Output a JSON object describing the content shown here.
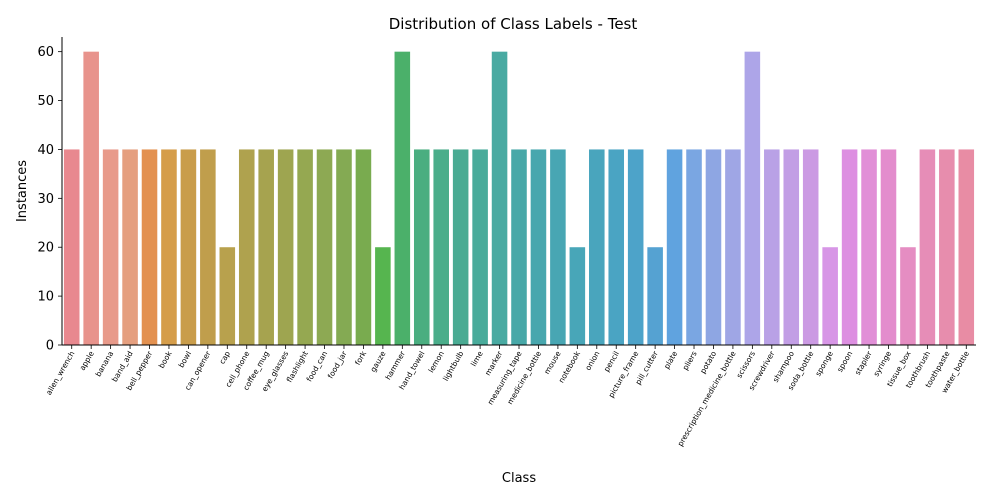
{
  "chart_data": {
    "type": "bar",
    "title": "Distribution of Class Labels - Test",
    "xlabel": "Class",
    "ylabel": "Instances",
    "ylim": [
      0,
      63
    ],
    "yticks": [
      0,
      10,
      20,
      30,
      40,
      50,
      60
    ],
    "grid": false,
    "categories": [
      "allen_wrench",
      "apple",
      "banana",
      "band_aid",
      "bell_pepper",
      "book",
      "bowl",
      "can_opener",
      "cap",
      "cell_phone",
      "coffee_mug",
      "eye_glasses",
      "flashlight",
      "food_can",
      "food_jar",
      "fork",
      "gauze",
      "hammer",
      "hand_towel",
      "lemon",
      "lightbulb",
      "lime",
      "marker",
      "measuring_tape",
      "medicine_bottle",
      "mouse",
      "notebook",
      "onion",
      "pencil",
      "picture_frame",
      "pill_cutter",
      "plate",
      "pliers",
      "potato",
      "prescription_medicine_bottle",
      "scissors",
      "screwdriver",
      "shampoo",
      "soda_bottle",
      "sponge",
      "spoon",
      "stapler",
      "syringe",
      "tissue_box",
      "toothbrush",
      "toothpaste",
      "water_bottle"
    ],
    "values": [
      40,
      60,
      40,
      40,
      40,
      40,
      40,
      40,
      20,
      40,
      40,
      40,
      40,
      40,
      40,
      40,
      20,
      60,
      40,
      40,
      40,
      40,
      60,
      40,
      40,
      40,
      20,
      40,
      40,
      40,
      20,
      40,
      40,
      40,
      40,
      60,
      40,
      40,
      40,
      20,
      40,
      40,
      40,
      20,
      40,
      40,
      40
    ],
    "colors": [
      "#e8888f",
      "#e8938c",
      "#e89a8a",
      "#e59f7f",
      "#e39150",
      "#d59d4a",
      "#c99d4b",
      "#c09e4c",
      "#b8a14d",
      "#afa24e",
      "#a6a34f",
      "#9ea550",
      "#95a851",
      "#8da953",
      "#84aa53",
      "#79ab4f",
      "#56b54f",
      "#4bb06a",
      "#4aae80",
      "#4aad8a",
      "#4aab93",
      "#49ab9b",
      "#49aaa2",
      "#48a8a8",
      "#48a7ae",
      "#48a6b3",
      "#48a6b8",
      "#49a5bd",
      "#4aa4c3",
      "#4da3c9",
      "#55a2d2",
      "#60a3df",
      "#7aa6e2",
      "#8ea6e3",
      "#9fa6e5",
      "#ada5e8",
      "#b9a1e6",
      "#c29ee5",
      "#cb9ae3",
      "#d796e6",
      "#dd8fe1",
      "#e18fd7",
      "#e38dcd",
      "#e58dc2",
      "#e68db7",
      "#e78dad",
      "#e88ca4"
    ]
  }
}
